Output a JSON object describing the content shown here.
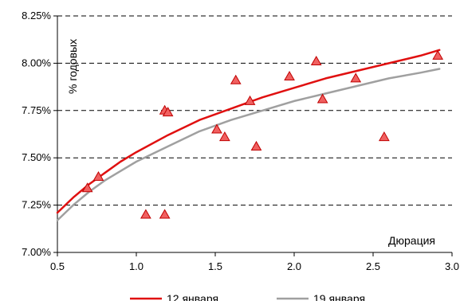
{
  "chart_data": {
    "type": "scatter",
    "title": "",
    "xlabel": "Дюрация",
    "ylabel": "% годовых",
    "xlim": [
      0.5,
      3.0
    ],
    "ylim": [
      7.0,
      8.25
    ],
    "x_ticks": [
      "0.5",
      "1.0",
      "1.5",
      "2.0",
      "2.5",
      "3.0"
    ],
    "y_ticks": [
      "7.00%",
      "7.25%",
      "7.50%",
      "7.75%",
      "8.00%",
      "8.25%"
    ],
    "grid": "horizontal-dashed",
    "series": [
      {
        "name": "12 января",
        "kind": "line",
        "color": "#e01010",
        "x": [
          0.5,
          0.6,
          0.7,
          0.8,
          0.9,
          1.0,
          1.2,
          1.4,
          1.6,
          1.8,
          2.0,
          2.2,
          2.4,
          2.6,
          2.8,
          2.92
        ],
        "y": [
          7.21,
          7.29,
          7.36,
          7.42,
          7.48,
          7.53,
          7.62,
          7.7,
          7.76,
          7.82,
          7.87,
          7.92,
          7.96,
          8.0,
          8.04,
          8.07
        ]
      },
      {
        "name": "19 января",
        "kind": "line",
        "color": "#a0a0a0",
        "x": [
          0.5,
          0.6,
          0.7,
          0.8,
          0.9,
          1.0,
          1.2,
          1.4,
          1.6,
          1.8,
          2.0,
          2.2,
          2.4,
          2.6,
          2.8,
          2.92
        ],
        "y": [
          7.17,
          7.25,
          7.32,
          7.38,
          7.43,
          7.48,
          7.56,
          7.64,
          7.7,
          7.75,
          7.8,
          7.84,
          7.88,
          7.92,
          7.95,
          7.97
        ]
      },
      {
        "name": "",
        "kind": "scatter",
        "color": "#f06060",
        "stroke": "#c00000",
        "x": [
          0.69,
          0.76,
          1.06,
          1.18,
          1.18,
          1.2,
          1.51,
          1.56,
          1.63,
          1.72,
          1.76,
          1.97,
          2.14,
          2.18,
          2.39,
          2.57,
          2.91
        ],
        "y": [
          7.34,
          7.4,
          7.2,
          7.2,
          7.75,
          7.74,
          7.65,
          7.61,
          7.91,
          7.8,
          7.56,
          7.93,
          8.01,
          7.81,
          7.92,
          7.61,
          8.04
        ]
      }
    ],
    "legend": {
      "placement": "bottom"
    }
  }
}
